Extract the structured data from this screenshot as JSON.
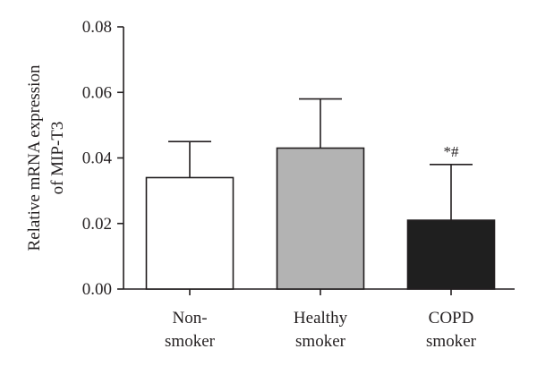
{
  "chart_data": {
    "type": "bar",
    "title": "",
    "xlabel": "",
    "ylabel_lines": [
      "Relative mRNA expression",
      "of MIP-T3"
    ],
    "ylim": [
      0,
      0.08
    ],
    "yticks": [
      0.0,
      0.02,
      0.04,
      0.06,
      0.08
    ],
    "ytick_labels": [
      "0.00",
      "0.02",
      "0.04",
      "0.06",
      "0.08"
    ],
    "categories": [
      {
        "lines": [
          "Non-",
          "smoker"
        ]
      },
      {
        "lines": [
          "Healthy",
          "smoker"
        ]
      },
      {
        "lines": [
          "COPD",
          "smoker"
        ]
      }
    ],
    "values": [
      0.034,
      0.043,
      0.021
    ],
    "error_upper": [
      0.045,
      0.058,
      0.038
    ],
    "bar_colors": [
      "#ffffff",
      "#b3b3b3",
      "#1f1f1f"
    ],
    "annotations": [
      {
        "category_index": 2,
        "text": "*#"
      }
    ]
  }
}
